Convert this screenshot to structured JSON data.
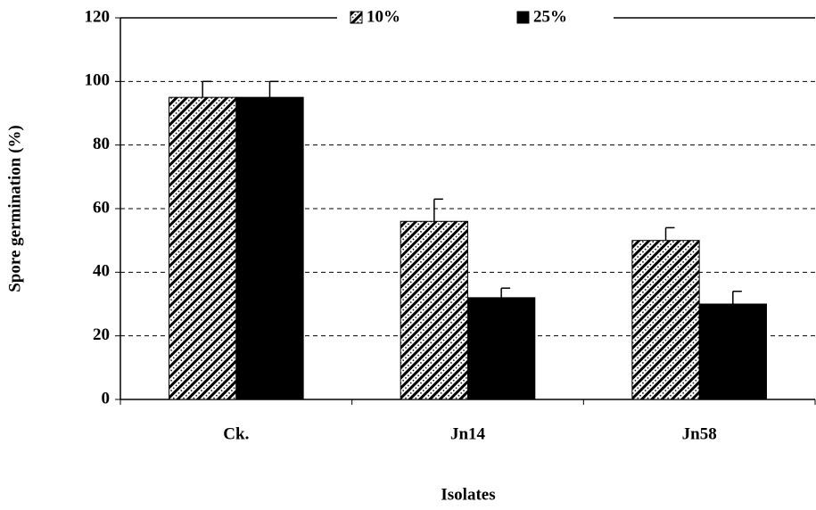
{
  "chart_data": {
    "type": "bar",
    "x_label": "Isolates",
    "y_label": "Spore germination (%)",
    "categories": [
      "Ck.",
      "Jn14",
      "Jn58"
    ],
    "series": [
      {
        "name": "10%",
        "color": "#000000",
        "pattern": "hatch",
        "values": [
          95,
          56,
          50
        ],
        "errors": [
          5,
          7,
          4
        ]
      },
      {
        "name": "25%",
        "color": "#000000",
        "pattern": "solid",
        "values": [
          95,
          32,
          30
        ],
        "errors": [
          5,
          3,
          4
        ]
      }
    ],
    "ylim": [
      0,
      120
    ],
    "yticks": [
      0,
      20,
      40,
      60,
      80,
      100,
      120
    ],
    "grid": true,
    "legend": "top"
  }
}
